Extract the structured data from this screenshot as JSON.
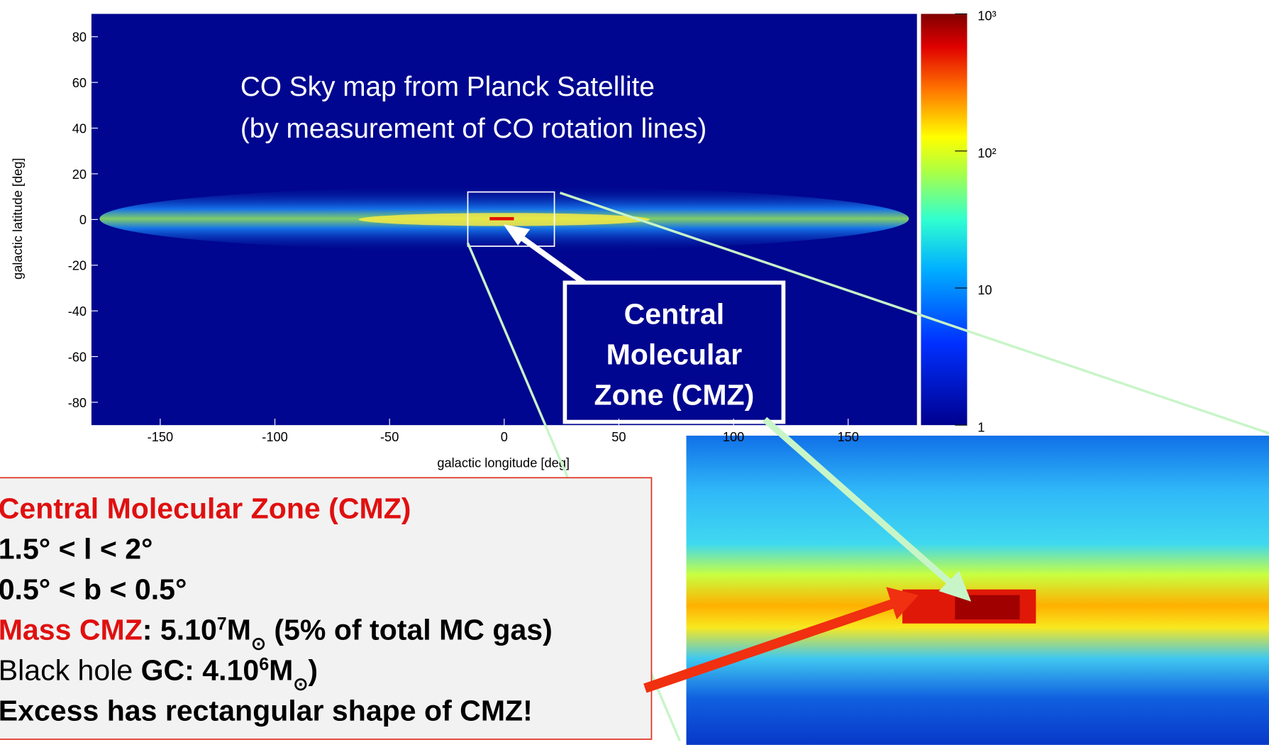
{
  "chart_data": {
    "type": "skymap",
    "title": "CO Sky map from Planck Satellite",
    "subtitle": "(by measurement of CO rotation lines)",
    "xlabel": "galactic longitude [deg]",
    "ylabel": "galactic latitude [deg]",
    "xlim": [
      -180,
      180
    ],
    "ylim": [
      -90,
      90
    ],
    "xticks": [
      -150,
      -100,
      -50,
      0,
      50,
      100,
      150
    ],
    "yticks": [
      -80,
      -60,
      -40,
      -20,
      0,
      20,
      40,
      60,
      80
    ],
    "colorbar": {
      "log": true,
      "lim": [
        1,
        1000
      ],
      "ticks": [
        1,
        10,
        {
          "value": 100,
          "label": "10²"
        },
        {
          "value": 1000,
          "label": "10³"
        }
      ]
    },
    "callout": [
      "Central",
      "Molecular",
      "Zone (CMZ)"
    ],
    "info_box": [
      [
        {
          "text": "Central Molecular Zone (CMZ)",
          "style": "red"
        }
      ],
      [
        {
          "text": "1.5°   < l  < 2°",
          "style": "bold"
        }
      ],
      [
        {
          "text": "0.5°   < b < 0.5°",
          "style": "bold"
        }
      ],
      [
        {
          "text": "Mass CMZ",
          "style": "red"
        },
        {
          "text": ": 5.10",
          "style": "bold"
        },
        {
          "text": "7",
          "style": "sup"
        },
        {
          "text": "M",
          "style": "bold"
        },
        {
          "text": "⊙",
          "style": "sub"
        },
        {
          "text": " (5% of total MC gas)",
          "style": "bold"
        }
      ],
      [
        {
          "text": "Black hole ",
          "style": "normal"
        },
        {
          "text": "GC: 4.10",
          "style": "bold"
        },
        {
          "text": "6",
          "style": "sup"
        },
        {
          "text": "M",
          "style": "bold"
        },
        {
          "text": "⊙",
          "style": "sub"
        },
        {
          "text": ")",
          "style": "bold"
        }
      ],
      [
        {
          "text": "Excess has rectangular shape of CMZ!",
          "style": "bold"
        }
      ]
    ]
  }
}
